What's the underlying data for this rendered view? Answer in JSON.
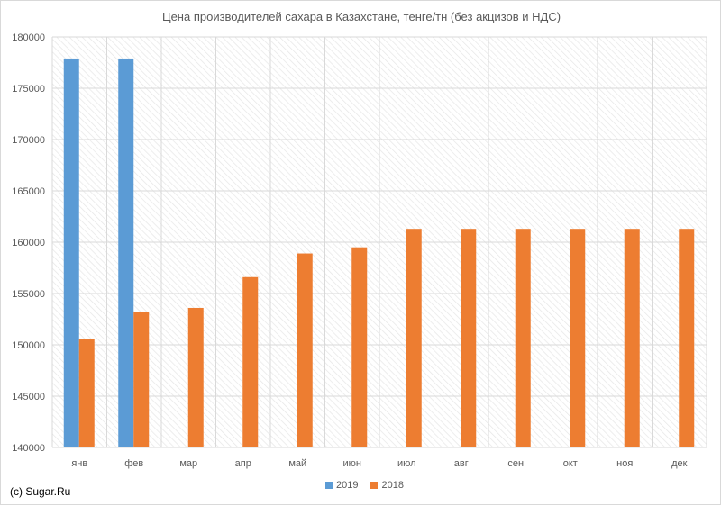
{
  "chart_data": {
    "type": "bar",
    "title": "Цена производителей сахара в Казахстане, тенге/тн (без акцизов и НДС)",
    "categories": [
      "янв",
      "фев",
      "мар",
      "апр",
      "май",
      "июн",
      "июл",
      "авг",
      "сен",
      "окт",
      "ноя",
      "дек"
    ],
    "series": [
      {
        "name": "2019",
        "color": "#5b9bd5",
        "values": [
          177900,
          177900,
          null,
          null,
          null,
          null,
          null,
          null,
          null,
          null,
          null,
          null
        ]
      },
      {
        "name": "2018",
        "color": "#ed7d31",
        "values": [
          150600,
          153200,
          153600,
          156600,
          158900,
          159500,
          161300,
          161300,
          161300,
          161300,
          161300,
          161300
        ]
      }
    ],
    "ylim": [
      140000,
      180000
    ],
    "yticks": [
      140000,
      145000,
      150000,
      155000,
      160000,
      165000,
      170000,
      175000,
      180000
    ],
    "ytick_labels": [
      "140000",
      "145000",
      "150000",
      "155000",
      "160000",
      "165000",
      "170000",
      "175000",
      "180000"
    ],
    "grid": true,
    "grid_style": "hatched",
    "legend_position": "bottom"
  },
  "footer": {
    "credit": "(c) Sugar.Ru"
  }
}
